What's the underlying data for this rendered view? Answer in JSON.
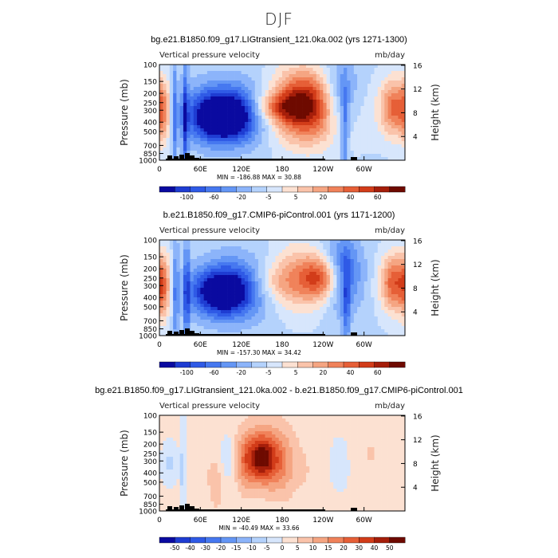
{
  "page": {
    "title": "DJF"
  },
  "chart_data": [
    {
      "type": "heatmap",
      "title": "bg.e21.B1850.f09_g17.LIGtransient_121.0ka.002 (yrs 1271-1300)",
      "subtitle_left": "Vertical pressure velocity",
      "subtitle_right": "mb/day",
      "ylabel": "Pressure (mb)",
      "ylabel_right": "Height (km)",
      "x_ticks": [
        "0",
        "60E",
        "120E",
        "180",
        "120W",
        "60W"
      ],
      "y_ticks": [
        "100",
        "150",
        "200",
        "250",
        "300",
        "400",
        "500",
        "700",
        "850",
        "1000"
      ],
      "y_right_ticks": [
        "16",
        "12",
        "8",
        "4"
      ],
      "stats": "MIN = -186.88   MAX =  30.88",
      "colorbar_labels": [
        "-100",
        "-60",
        "-20",
        "-5",
        "5",
        "20",
        "40",
        "60"
      ],
      "colorbar_colors": [
        "#0a0aa0",
        "#1e3cd2",
        "#2f5ae6",
        "#4678f0",
        "#6496f5",
        "#8cb4fa",
        "#b4d2fc",
        "#d7e6fc",
        "#fce1d2",
        "#fac3aa",
        "#f5a582",
        "#f0825a",
        "#e65f37",
        "#d23c19",
        "#a51e0a",
        "#6e0a00"
      ],
      "field": {
        "base": -1.2,
        "terms": [
          [
            22,
            3,
            0.55,
            1.5,
            -3.0
          ],
          [
            38,
            3,
            0.6,
            1.5,
            -4.0
          ],
          [
            92,
            30,
            0.55,
            0.55,
            -7.5
          ],
          [
            100,
            45,
            0.5,
            0.8,
            -4.0
          ],
          [
            265,
            20,
            0.35,
            0.9,
            -4.0
          ],
          [
            272,
            4,
            0.7,
            1.2,
            -3.0
          ],
          [
            208,
            30,
            0.4,
            0.8,
            6.0
          ],
          [
            170,
            25,
            0.45,
            0.35,
            3.5
          ],
          [
            345,
            15,
            0.45,
            0.7,
            5.5
          ],
          [
            5,
            8,
            0.5,
            0.8,
            4.0
          ],
          [
            230,
            45,
            0.5,
            0.9,
            3.5
          ]
        ]
      }
    },
    {
      "type": "heatmap",
      "title": "b.e21.B1850.f09_g17.CMIP6-piControl.001 (yrs 1171-1200)",
      "subtitle_left": "Vertical pressure velocity",
      "subtitle_right": "mb/day",
      "ylabel": "Pressure (mb)",
      "ylabel_right": "Height (km)",
      "x_ticks": [
        "0",
        "60E",
        "120E",
        "180",
        "120W",
        "60W"
      ],
      "y_ticks": [
        "100",
        "150",
        "200",
        "250",
        "300",
        "400",
        "500",
        "700",
        "850",
        "1000"
      ],
      "y_right_ticks": [
        "16",
        "12",
        "8",
        "4"
      ],
      "stats": "MIN = -157.30   MAX =  34.42",
      "colorbar_labels": [
        "-100",
        "-60",
        "-20",
        "-5",
        "5",
        "20",
        "40",
        "60"
      ],
      "colorbar_colors": [
        "#0a0aa0",
        "#1e3cd2",
        "#2f5ae6",
        "#4678f0",
        "#6496f5",
        "#8cb4fa",
        "#b4d2fc",
        "#d7e6fc",
        "#fce1d2",
        "#fac3aa",
        "#f5a582",
        "#f0825a",
        "#e65f37",
        "#d23c19",
        "#a51e0a",
        "#6e0a00"
      ],
      "field": {
        "base": -1.2,
        "terms": [
          [
            24,
            3,
            0.55,
            1.5,
            -3.0
          ],
          [
            40,
            3,
            0.6,
            1.5,
            -4.0
          ],
          [
            90,
            30,
            0.55,
            0.55,
            -6.5
          ],
          [
            112,
            40,
            0.5,
            0.8,
            -3.5
          ],
          [
            268,
            20,
            0.35,
            0.9,
            -4.5
          ],
          [
            274,
            4,
            0.7,
            1.2,
            -3.0
          ],
          [
            205,
            30,
            0.4,
            0.8,
            4.0
          ],
          [
            240,
            20,
            0.4,
            0.5,
            5.0
          ],
          [
            345,
            15,
            0.45,
            0.7,
            6.0
          ],
          [
            5,
            8,
            0.5,
            0.8,
            4.0
          ],
          [
            165,
            25,
            0.45,
            0.45,
            2.0
          ]
        ]
      }
    },
    {
      "type": "heatmap",
      "title": "bg.e21.B1850.f09_g17.LIGtransient_121.0ka.002 - b.e21.B1850.f09_g17.CMIP6-piControl.001",
      "subtitle_left": "Vertical pressure velocity",
      "subtitle_right": "mb/day",
      "ylabel": "Pressure (mb)",
      "ylabel_right": "Height (km)",
      "x_ticks": [
        "0",
        "60E",
        "120E",
        "180",
        "120W",
        "60W"
      ],
      "y_ticks": [
        "100",
        "150",
        "200",
        "250",
        "300",
        "400",
        "500",
        "700",
        "850",
        "1000"
      ],
      "y_right_ticks": [
        "16",
        "12",
        "8",
        "4"
      ],
      "stats": "MIN = -40.49   MAX =  33.66",
      "colorbar_labels": [
        "-50",
        "-40",
        "-30",
        "-20",
        "-15",
        "-10",
        "-5",
        "0",
        "5",
        "10",
        "15",
        "20",
        "30",
        "40",
        "50"
      ],
      "colorbar_colors": [
        "#0a0aa0",
        "#1e3cd2",
        "#2f5ae6",
        "#4678f0",
        "#6496f5",
        "#8cb4fa",
        "#b4d2fc",
        "#d7e6fc",
        "#fce1d2",
        "#fac3aa",
        "#f5a582",
        "#f0825a",
        "#e65f37",
        "#d23c19",
        "#a51e0a",
        "#6e0a00"
      ],
      "field": {
        "base": 0.25,
        "terms": [
          [
            150,
            15,
            0.45,
            0.55,
            5.5
          ],
          [
            155,
            30,
            0.4,
            0.9,
            2.2
          ],
          [
            125,
            10,
            0.5,
            0.7,
            1.8
          ],
          [
            180,
            15,
            0.55,
            0.8,
            1.5
          ],
          [
            15,
            8,
            0.5,
            0.5,
            -1.5
          ],
          [
            35,
            3,
            0.6,
            1.2,
            -2.0
          ],
          [
            100,
            10,
            0.45,
            0.6,
            -1.5
          ],
          [
            85,
            8,
            0.7,
            0.8,
            1.2
          ],
          [
            265,
            10,
            0.5,
            0.6,
            -1.0
          ],
          [
            310,
            20,
            0.4,
            0.6,
            0.8
          ],
          [
            60,
            15,
            0.6,
            0.9,
            0.6
          ],
          [
            215,
            12,
            0.6,
            0.6,
            0.5
          ]
        ]
      }
    }
  ]
}
